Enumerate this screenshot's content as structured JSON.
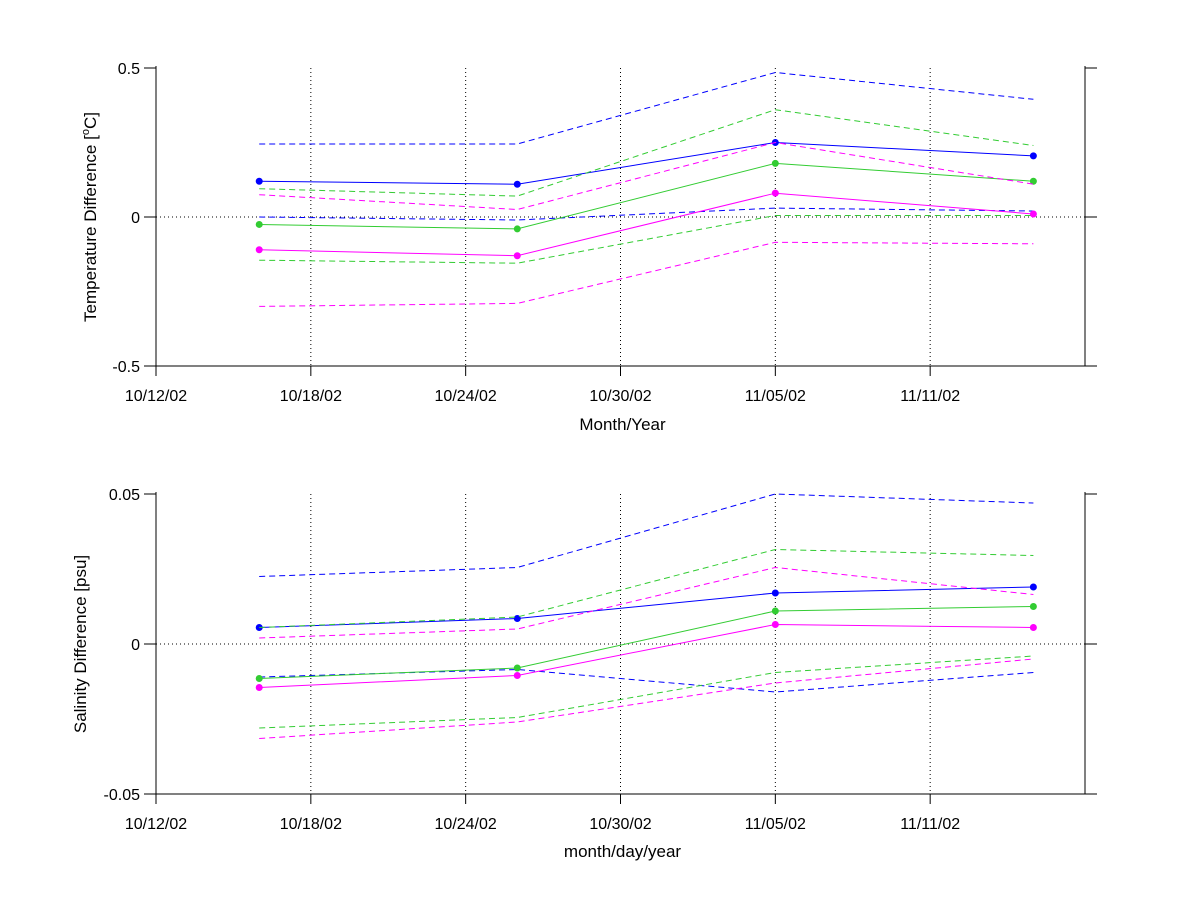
{
  "colors": {
    "blue": "#0000ff",
    "green": "#33cc33",
    "magenta": "#ff00ff",
    "axis": "#000000",
    "grid": "#000000"
  },
  "x_tick_labels": [
    "10/12/02",
    "10/18/02",
    "10/24/02",
    "10/30/02",
    "11/05/02",
    "11/11/02"
  ],
  "chart_data": [
    {
      "type": "line",
      "xlabel": "Month/Year",
      "ylabel": "Temperature Difference [oC]",
      "ylabel_parts": {
        "before": "Temperature Difference [",
        "superscript": "o",
        "after": "C]"
      },
      "xlim": [
        "2002-10-12",
        "2002-11-17"
      ],
      "ylim": [
        -0.5,
        0.5
      ],
      "y_ticks": [
        -0.5,
        0,
        0.5
      ],
      "y_tick_labels": [
        "-0.5",
        "0",
        "0.5"
      ],
      "grid": "dotted vertical at x ticks",
      "zero_line": "dotted",
      "x": [
        "2002-10-16",
        "2002-10-26",
        "2002-11-05",
        "2002-11-15"
      ],
      "series": [
        {
          "color": "blue",
          "style": "solid-markers",
          "values": [
            0.12,
            0.11,
            0.25,
            0.205
          ]
        },
        {
          "color": "blue",
          "style": "dashed",
          "values": [
            0.245,
            0.245,
            0.485,
            0.395
          ]
        },
        {
          "color": "blue",
          "style": "dashed",
          "values": [
            0.0,
            -0.01,
            0.03,
            0.02
          ]
        },
        {
          "color": "green",
          "style": "solid-markers",
          "values": [
            -0.025,
            -0.04,
            0.18,
            0.12
          ]
        },
        {
          "color": "green",
          "style": "dashed",
          "values": [
            0.095,
            0.07,
            0.36,
            0.24
          ]
        },
        {
          "color": "green",
          "style": "dashed",
          "values": [
            -0.145,
            -0.155,
            0.005,
            0.005
          ]
        },
        {
          "color": "magenta",
          "style": "solid-markers",
          "values": [
            -0.11,
            -0.13,
            0.08,
            0.01
          ]
        },
        {
          "color": "magenta",
          "style": "dashed",
          "values": [
            0.075,
            0.025,
            0.25,
            0.11
          ]
        },
        {
          "color": "magenta",
          "style": "dashed",
          "values": [
            -0.3,
            -0.29,
            -0.085,
            -0.09
          ]
        }
      ]
    },
    {
      "type": "line",
      "xlabel": "month/day/year",
      "ylabel": "Salinity Difference [psu]",
      "xlim": [
        "2002-10-12",
        "2002-11-17"
      ],
      "ylim": [
        -0.05,
        0.05
      ],
      "y_ticks": [
        -0.05,
        0,
        0.05
      ],
      "y_tick_labels": [
        "-0.05",
        "0",
        "0.05"
      ],
      "grid": "dotted vertical at x ticks",
      "zero_line": "dotted",
      "x": [
        "2002-10-16",
        "2002-10-26",
        "2002-11-05",
        "2002-11-15"
      ],
      "series": [
        {
          "color": "blue",
          "style": "solid-markers",
          "values": [
            0.0055,
            0.0085,
            0.017,
            0.019
          ]
        },
        {
          "color": "blue",
          "style": "dashed",
          "values": [
            0.0225,
            0.0255,
            0.05,
            0.047
          ]
        },
        {
          "color": "blue",
          "style": "dashed",
          "values": [
            -0.011,
            -0.0085,
            -0.016,
            -0.0095
          ]
        },
        {
          "color": "green",
          "style": "solid-markers",
          "values": [
            -0.0115,
            -0.008,
            0.011,
            0.0125
          ]
        },
        {
          "color": "green",
          "style": "dashed",
          "values": [
            0.0055,
            0.009,
            0.0315,
            0.0295
          ]
        },
        {
          "color": "green",
          "style": "dashed",
          "values": [
            -0.028,
            -0.0245,
            -0.0095,
            -0.004
          ]
        },
        {
          "color": "magenta",
          "style": "solid-markers",
          "values": [
            -0.0145,
            -0.0105,
            0.0065,
            0.0055
          ]
        },
        {
          "color": "magenta",
          "style": "dashed",
          "values": [
            0.002,
            0.005,
            0.0255,
            0.0165
          ]
        },
        {
          "color": "magenta",
          "style": "dashed",
          "values": [
            -0.0315,
            -0.026,
            -0.013,
            -0.005
          ]
        }
      ]
    }
  ]
}
